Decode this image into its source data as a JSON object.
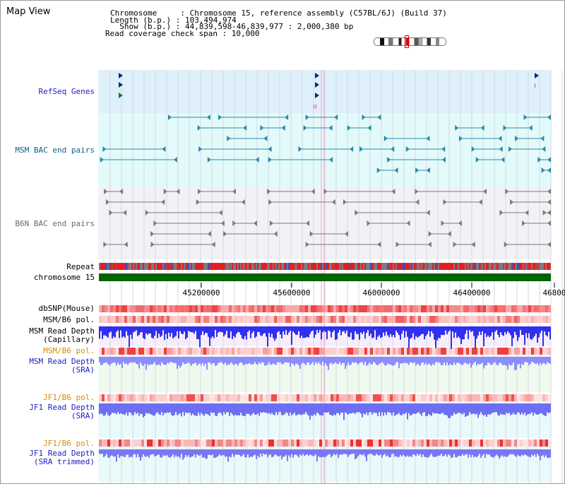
{
  "view_title": "Map View",
  "header": {
    "line1": "Chromosome     : Chromosome 15, reference assembly (C57BL/6J) (Build 37)",
    "line2": "Length (b.p.) : 103,494,974",
    "line3": "  Show (b.p.) : 44,839,598-46,839,977 : 2,000,380 bp",
    "line4": "Read coverage check span : 10,000"
  },
  "tracks": {
    "refseq": "RefSeq Genes",
    "msm_bac": "MSM BAC end pairs",
    "b6n_bac": "B6N BAC end pairs",
    "repeat": "Repeat",
    "chromosome": "chromosome 15",
    "dbsnp": "dbSNP(Mouse)",
    "msm_b6_pol": "MSM/B6 pol.",
    "msm_depth_cap_1": "MSM Read Depth",
    "msm_depth_cap_2": "(Capillary)",
    "msm_b6_pol_sra": "MSM/B6 pol.",
    "msm_depth_sra_1": "MSM Read Depth",
    "msm_depth_sra_2": "(SRA)",
    "jf1_pol_1": "JF1/B6 pol.",
    "jf1_depth_1": "JF1 Read Depth",
    "jf1_depth_1b": "(SRA)",
    "jf1_pol_2": "JF1/B6 pol.",
    "jf1_depth_2": "JF1 Read Depth",
    "jf1_depth_2b": "(SRA trimmed)"
  },
  "axis_ticks": [
    "45200000",
    "45600000",
    "46000000",
    "46400000",
    "46800"
  ],
  "colors": {
    "refseq_bg": "#dff0fb",
    "msm_bac_bg": "#e3fafa",
    "b6n_bac_bg": "#f2f2f6",
    "chromosome": "#006400",
    "depth_blue": "#3030ee",
    "depth_light": "#8c8cff",
    "snp_red": "#ee2222"
  }
}
